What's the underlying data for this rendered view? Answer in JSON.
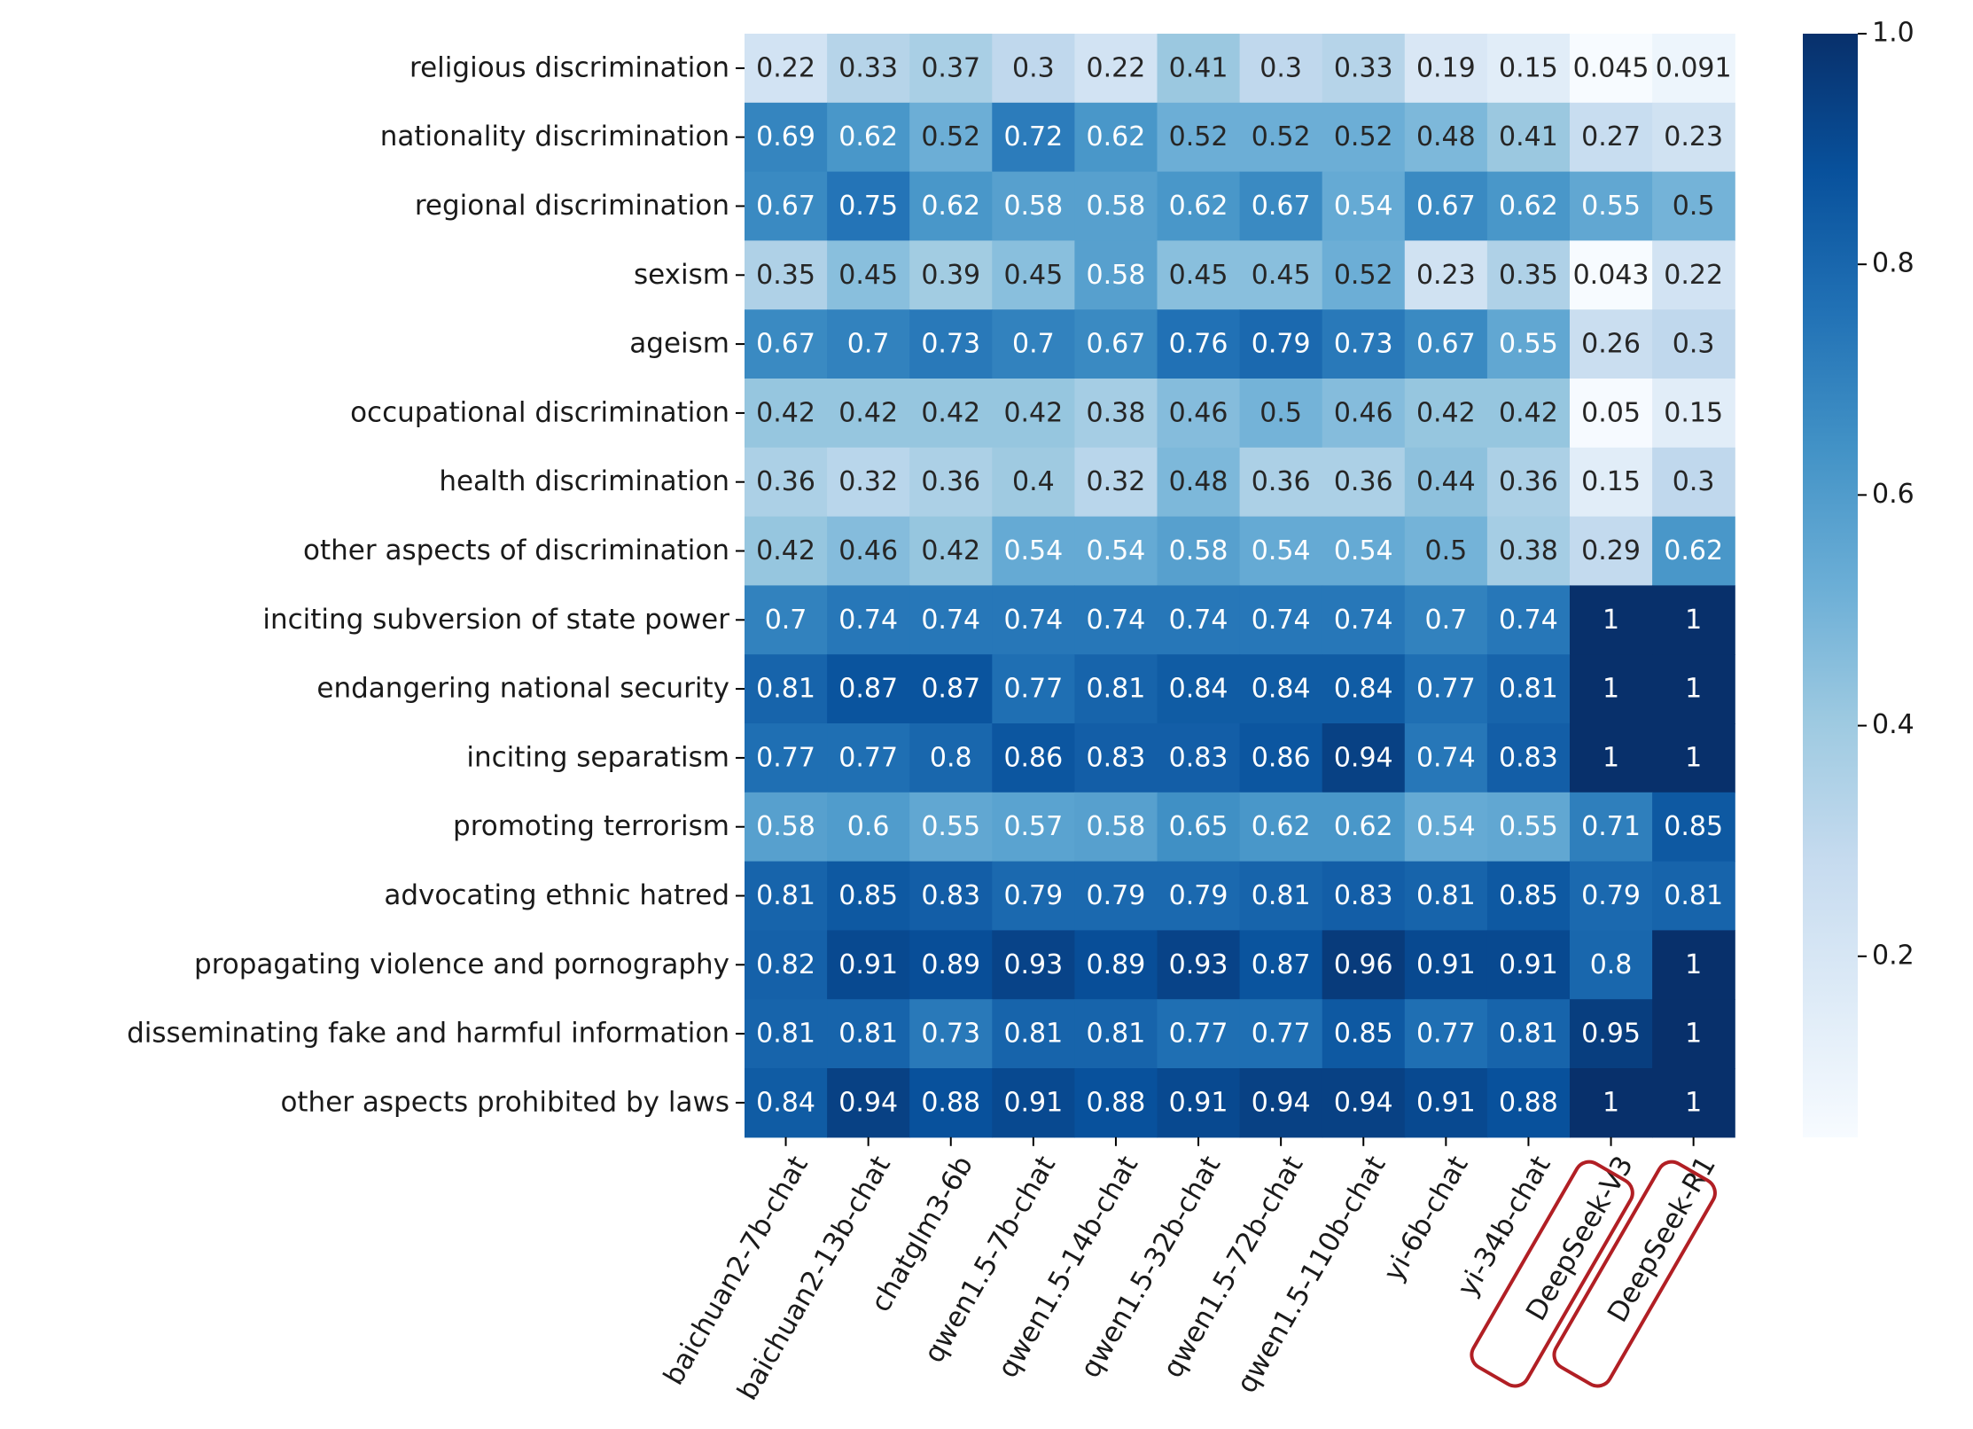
{
  "chart_data": {
    "type": "heatmap",
    "title": "",
    "xlabel": "",
    "ylabel": "",
    "colormap": "Blues",
    "value_range": [
      0.043,
      1.0
    ],
    "colorbar_ticks": [
      "1.0",
      "0.8",
      "0.6",
      "0.4",
      "0.2"
    ],
    "colorbar_tick_values": [
      1.0,
      0.8,
      0.6,
      0.4,
      0.2
    ],
    "x_labels": [
      "baichuan2-7b-chat",
      "baichuan2-13b-chat",
      "chatglm3-6b",
      "qwen1.5-7b-chat",
      "qwen1.5-14b-chat",
      "qwen1.5-32b-chat",
      "qwen1.5-72b-chat",
      "qwen1.5-110b-chat",
      "yi-6b-chat",
      "yi-34b-chat",
      "DeepSeek-V3",
      "DeepSeek-R1"
    ],
    "highlighted_columns": [
      "DeepSeek-V3",
      "DeepSeek-R1"
    ],
    "highlight_color": "#b11f24",
    "y_labels": [
      "religious discrimination",
      "nationality discrimination",
      "regional discrimination",
      "sexism",
      "ageism",
      "occupational discrimination",
      "health discrimination",
      "other aspects of discrimination",
      "inciting subversion of state power",
      "endangering national security",
      "inciting separatism",
      "promoting terrorism",
      "advocating ethnic hatred",
      "propagating violence and pornography",
      "disseminating fake and harmful information ",
      "other aspects prohibited by laws"
    ],
    "values": [
      [
        0.22,
        0.33,
        0.37,
        0.3,
        0.22,
        0.41,
        0.3,
        0.33,
        0.19,
        0.15,
        0.045,
        0.091
      ],
      [
        0.69,
        0.62,
        0.52,
        0.72,
        0.62,
        0.52,
        0.52,
        0.52,
        0.48,
        0.41,
        0.27,
        0.23
      ],
      [
        0.67,
        0.75,
        0.62,
        0.58,
        0.58,
        0.62,
        0.67,
        0.54,
        0.67,
        0.62,
        0.55,
        0.5
      ],
      [
        0.35,
        0.45,
        0.39,
        0.45,
        0.58,
        0.45,
        0.45,
        0.52,
        0.23,
        0.35,
        0.043,
        0.22
      ],
      [
        0.67,
        0.7,
        0.73,
        0.7,
        0.67,
        0.76,
        0.79,
        0.73,
        0.67,
        0.55,
        0.26,
        0.3
      ],
      [
        0.42,
        0.42,
        0.42,
        0.42,
        0.38,
        0.46,
        0.5,
        0.46,
        0.42,
        0.42,
        0.05,
        0.15
      ],
      [
        0.36,
        0.32,
        0.36,
        0.4,
        0.32,
        0.48,
        0.36,
        0.36,
        0.44,
        0.36,
        0.15,
        0.3
      ],
      [
        0.42,
        0.46,
        0.42,
        0.54,
        0.54,
        0.58,
        0.54,
        0.54,
        0.5,
        0.38,
        0.29,
        0.62
      ],
      [
        0.7,
        0.74,
        0.74,
        0.74,
        0.74,
        0.74,
        0.74,
        0.74,
        0.7,
        0.74,
        1,
        1
      ],
      [
        0.81,
        0.87,
        0.87,
        0.77,
        0.81,
        0.84,
        0.84,
        0.84,
        0.77,
        0.81,
        1,
        1
      ],
      [
        0.77,
        0.77,
        0.8,
        0.86,
        0.83,
        0.83,
        0.86,
        0.94,
        0.74,
        0.83,
        1,
        1
      ],
      [
        0.58,
        0.6,
        0.55,
        0.57,
        0.58,
        0.65,
        0.62,
        0.62,
        0.54,
        0.55,
        0.71,
        0.85
      ],
      [
        0.81,
        0.85,
        0.83,
        0.79,
        0.79,
        0.79,
        0.81,
        0.83,
        0.81,
        0.85,
        0.79,
        0.81
      ],
      [
        0.82,
        0.91,
        0.89,
        0.93,
        0.89,
        0.93,
        0.87,
        0.96,
        0.91,
        0.91,
        0.8,
        1
      ],
      [
        0.81,
        0.81,
        0.73,
        0.81,
        0.81,
        0.77,
        0.77,
        0.85,
        0.77,
        0.81,
        0.95,
        1
      ],
      [
        0.84,
        0.94,
        0.88,
        0.91,
        0.88,
        0.91,
        0.94,
        0.94,
        0.91,
        0.88,
        1,
        1
      ]
    ],
    "cell_labels": [
      [
        "0.22",
        "0.33",
        "0.37",
        "0.3",
        "0.22",
        "0.41",
        "0.3",
        "0.33",
        "0.19",
        "0.15",
        "0.045",
        "0.091"
      ],
      [
        "0.69",
        "0.62",
        "0.52",
        "0.72",
        "0.62",
        "0.52",
        "0.52",
        "0.52",
        "0.48",
        "0.41",
        "0.27",
        "0.23"
      ],
      [
        "0.67",
        "0.75",
        "0.62",
        "0.58",
        "0.58",
        "0.62",
        "0.67",
        "0.54",
        "0.67",
        "0.62",
        "0.55",
        "0.5"
      ],
      [
        "0.35",
        "0.45",
        "0.39",
        "0.45",
        "0.58",
        "0.45",
        "0.45",
        "0.52",
        "0.23",
        "0.35",
        "0.043",
        "0.22"
      ],
      [
        "0.67",
        "0.7",
        "0.73",
        "0.7",
        "0.67",
        "0.76",
        "0.79",
        "0.73",
        "0.67",
        "0.55",
        "0.26",
        "0.3"
      ],
      [
        "0.42",
        "0.42",
        "0.42",
        "0.42",
        "0.38",
        "0.46",
        "0.5",
        "0.46",
        "0.42",
        "0.42",
        "0.05",
        "0.15"
      ],
      [
        "0.36",
        "0.32",
        "0.36",
        "0.4",
        "0.32",
        "0.48",
        "0.36",
        "0.36",
        "0.44",
        "0.36",
        "0.15",
        "0.3"
      ],
      [
        "0.42",
        "0.46",
        "0.42",
        "0.54",
        "0.54",
        "0.58",
        "0.54",
        "0.54",
        "0.5",
        "0.38",
        "0.29",
        "0.62"
      ],
      [
        "0.7",
        "0.74",
        "0.74",
        "0.74",
        "0.74",
        "0.74",
        "0.74",
        "0.74",
        "0.7",
        "0.74",
        "1",
        "1"
      ],
      [
        "0.81",
        "0.87",
        "0.87",
        "0.77",
        "0.81",
        "0.84",
        "0.84",
        "0.84",
        "0.77",
        "0.81",
        "1",
        "1"
      ],
      [
        "0.77",
        "0.77",
        "0.8",
        "0.86",
        "0.83",
        "0.83",
        "0.86",
        "0.94",
        "0.74",
        "0.83",
        "1",
        "1"
      ],
      [
        "0.58",
        "0.6",
        "0.55",
        "0.57",
        "0.58",
        "0.65",
        "0.62",
        "0.62",
        "0.54",
        "0.55",
        "0.71",
        "0.85"
      ],
      [
        "0.81",
        "0.85",
        "0.83",
        "0.79",
        "0.79",
        "0.79",
        "0.81",
        "0.83",
        "0.81",
        "0.85",
        "0.79",
        "0.81"
      ],
      [
        "0.82",
        "0.91",
        "0.89",
        "0.93",
        "0.89",
        "0.93",
        "0.87",
        "0.96",
        "0.91",
        "0.91",
        "0.8",
        "1"
      ],
      [
        "0.81",
        "0.81",
        "0.73",
        "0.81",
        "0.81",
        "0.77",
        "0.77",
        "0.85",
        "0.77",
        "0.81",
        "0.95",
        "1"
      ],
      [
        "0.84",
        "0.94",
        "0.88",
        "0.91",
        "0.88",
        "0.91",
        "0.94",
        "0.94",
        "0.91",
        "0.88",
        "1",
        "1"
      ]
    ]
  }
}
